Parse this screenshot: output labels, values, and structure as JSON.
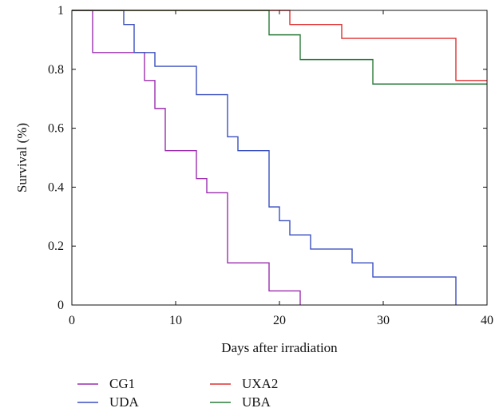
{
  "chart_data": {
    "type": "line",
    "step": true,
    "xlabel": "Days after irradiation",
    "ylabel": "Survival (%)",
    "xlim": [
      0,
      40
    ],
    "ylim": [
      0,
      1
    ],
    "x_ticks": [
      "0",
      "10",
      "20",
      "30",
      "40"
    ],
    "y_ticks": [
      "0",
      "0.2",
      "0.4",
      "0.6",
      "0.8",
      "1"
    ],
    "grid": false,
    "legend_position": "bottom",
    "series": [
      {
        "name": "CG1",
        "color": "#9b2fae",
        "x": [
          0,
          2,
          7,
          8,
          9,
          12,
          13,
          15,
          19,
          22
        ],
        "y": [
          1.0,
          0.857,
          0.762,
          0.667,
          0.524,
          0.429,
          0.381,
          0.143,
          0.048,
          0.0
        ]
      },
      {
        "name": "UDA",
        "color": "#3a4fc0",
        "x": [
          0,
          5,
          6,
          8,
          12,
          15,
          16,
          19,
          20,
          21,
          23,
          27,
          29,
          37
        ],
        "y": [
          1.0,
          0.952,
          0.857,
          0.81,
          0.714,
          0.571,
          0.524,
          0.333,
          0.286,
          0.238,
          0.19,
          0.143,
          0.095,
          0.0
        ]
      },
      {
        "name": "UXA2",
        "color": "#e03030",
        "x": [
          0,
          21,
          26,
          37,
          40
        ],
        "y": [
          1.0,
          0.952,
          0.905,
          0.762,
          0.762
        ]
      },
      {
        "name": "UBA",
        "color": "#2a7a3a",
        "x": [
          0,
          19,
          22,
          29,
          40
        ],
        "y": [
          1.0,
          0.917,
          0.833,
          0.75,
          0.75
        ]
      }
    ]
  }
}
